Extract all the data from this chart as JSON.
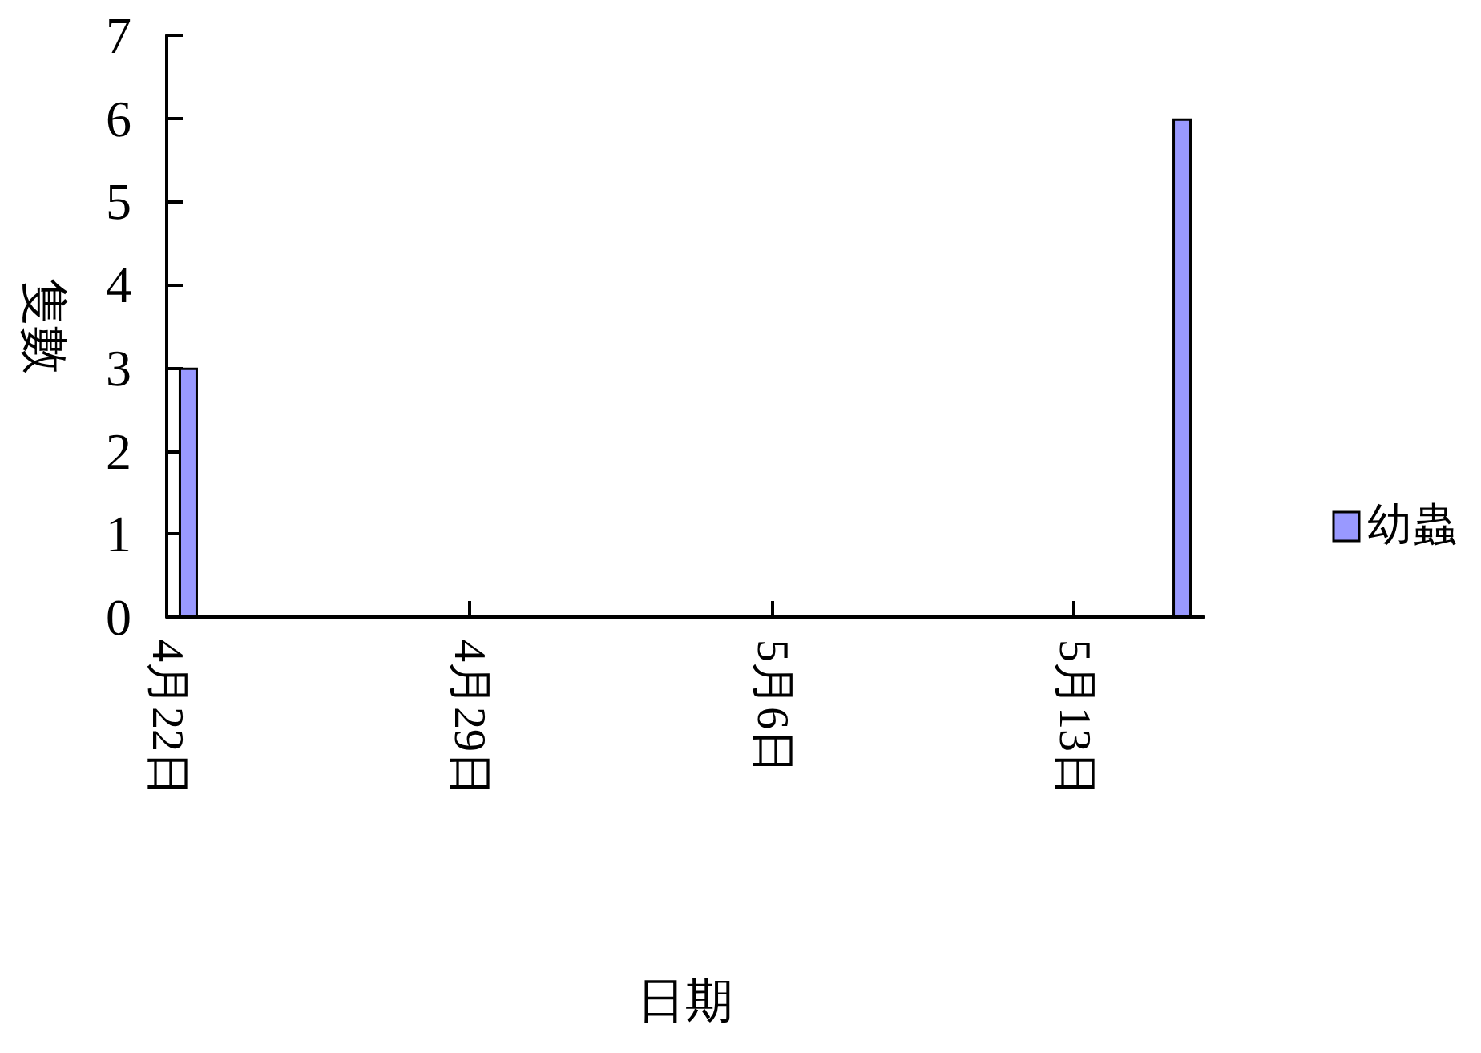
{
  "chart_data": {
    "type": "bar",
    "xlabel": "日期",
    "ylabel": "隻數",
    "x": [
      "--04-22",
      "--05-15"
    ],
    "series": [
      {
        "name": "幼蟲",
        "color": "#9999ff",
        "values": [
          3,
          6
        ]
      }
    ],
    "xlim": [
      "--04-22",
      "--05-16"
    ],
    "xticks": [
      {
        "value": "--04-22",
        "label": "4月22日"
      },
      {
        "value": "--04-29",
        "label": "4月29日"
      },
      {
        "value": "--05-06",
        "label": "5月6日"
      },
      {
        "value": "--05-13",
        "label": "5月13日"
      }
    ],
    "ylim": [
      0,
      7
    ],
    "yticks": [
      0,
      1,
      2,
      3,
      4,
      5,
      6,
      7
    ],
    "grid": false,
    "legend": "right"
  }
}
